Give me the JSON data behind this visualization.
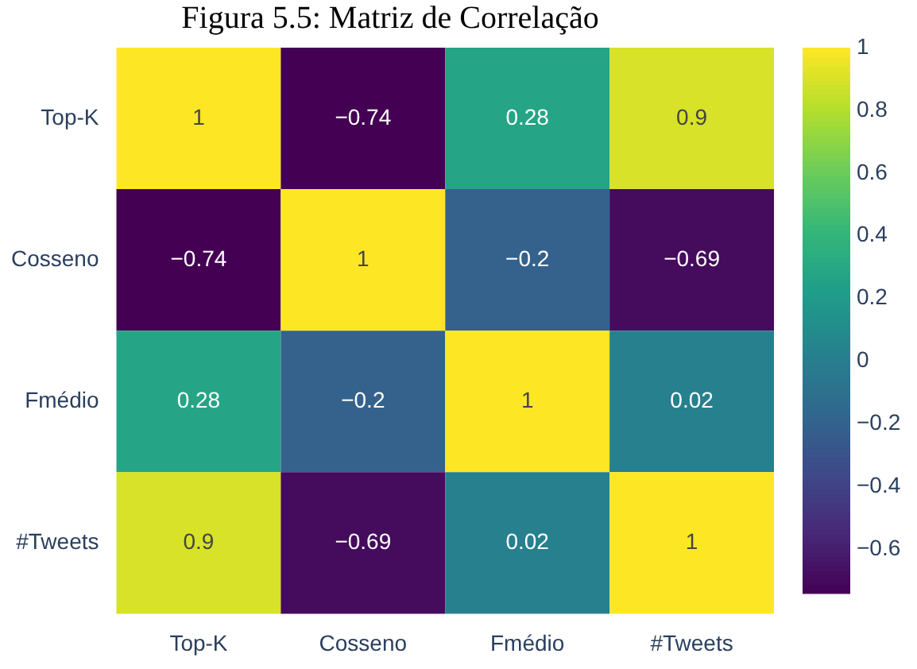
{
  "chart_data": {
    "type": "heatmap",
    "title": "Figura 5.5: Matriz de Correlação",
    "categories": [
      "Top-K",
      "Cosseno",
      "Fmédio",
      "#Tweets"
    ],
    "y_categories": [
      "Top-K",
      "Cosseno",
      "Fmédio",
      "#Tweets"
    ],
    "cells": [
      [
        1,
        -0.74,
        0.28,
        0.9
      ],
      [
        -0.74,
        1,
        -0.2,
        -0.69
      ],
      [
        0.28,
        -0.2,
        1,
        0.02
      ],
      [
        0.9,
        -0.69,
        0.02,
        1
      ]
    ],
    "data_labels": true,
    "clim": [
      -0.74,
      1
    ],
    "cticks": [
      -0.6,
      -0.4,
      -0.2,
      0,
      0.2,
      0.4,
      0.6,
      0.8,
      1
    ]
  }
}
